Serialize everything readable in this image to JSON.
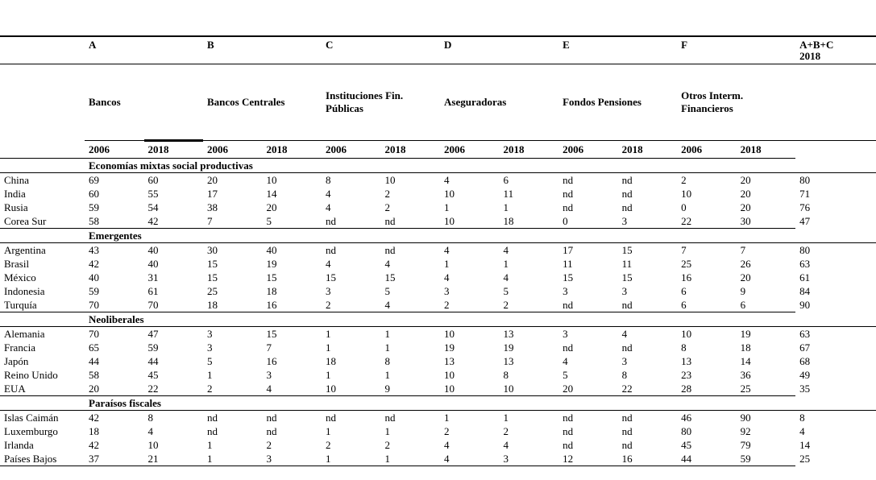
{
  "colors": {
    "text": "#000000",
    "background": "#ffffff",
    "rule": "#000000"
  },
  "table": {
    "letter_headers": [
      "A",
      "B",
      "C",
      "D",
      "E",
      "F"
    ],
    "sum_header_line1": "A+B+C",
    "sum_header_line2": "2018",
    "group_names": [
      "Bancos",
      "Bancos Centrales",
      "Instituciones Fin. Públicas",
      "Aseguradoras",
      "Fondos Pensiones",
      "Otros Interm. Financieros"
    ],
    "year_pair": [
      "2006",
      "2018"
    ],
    "nd_label": "nd",
    "sections": [
      {
        "title": "Economías mixtas social productivas",
        "rows": [
          {
            "country": "China",
            "values": [
              69,
              60,
              20,
              10,
              8,
              10,
              4,
              6,
              "nd",
              "nd",
              2,
              20
            ],
            "total": 80
          },
          {
            "country": "India",
            "values": [
              60,
              55,
              17,
              14,
              4,
              2,
              10,
              11,
              "nd",
              "nd",
              10,
              20
            ],
            "total": 71
          },
          {
            "country": "Rusia",
            "values": [
              59,
              54,
              38,
              20,
              4,
              2,
              1,
              1,
              "nd",
              "nd",
              0,
              20
            ],
            "total": 76
          },
          {
            "country": "Corea Sur",
            "values": [
              58,
              42,
              7,
              5,
              "nd",
              "nd",
              10,
              18,
              0,
              3,
              22,
              30
            ],
            "total": 47
          }
        ]
      },
      {
        "title": "Emergentes",
        "rows": [
          {
            "country": "Argentina",
            "values": [
              43,
              40,
              30,
              40,
              "nd",
              "nd",
              4,
              4,
              17,
              15,
              7,
              7
            ],
            "total": 80
          },
          {
            "country": "Brasil",
            "values": [
              42,
              40,
              15,
              19,
              4,
              4,
              1,
              1,
              11,
              11,
              25,
              26
            ],
            "total": 63
          },
          {
            "country": "México",
            "values": [
              40,
              31,
              15,
              15,
              15,
              15,
              4,
              4,
              15,
              15,
              16,
              20
            ],
            "total": 61
          },
          {
            "country": "Indonesia",
            "values": [
              59,
              61,
              25,
              18,
              3,
              5,
              3,
              5,
              3,
              3,
              6,
              9
            ],
            "total": 84
          },
          {
            "country": "Turquía",
            "values": [
              70,
              70,
              18,
              16,
              2,
              4,
              2,
              2,
              "nd",
              "nd",
              6,
              6
            ],
            "total": 90
          }
        ]
      },
      {
        "title": "Neoliberales",
        "rows": [
          {
            "country": "Alemania",
            "values": [
              70,
              47,
              3,
              15,
              1,
              1,
              10,
              13,
              3,
              4,
              10,
              19
            ],
            "total": 63
          },
          {
            "country": "Francia",
            "values": [
              65,
              59,
              3,
              7,
              1,
              1,
              19,
              19,
              "nd",
              "nd",
              8,
              18
            ],
            "total": 67
          },
          {
            "country": "Japón",
            "values": [
              44,
              44,
              5,
              16,
              18,
              8,
              13,
              13,
              4,
              3,
              13,
              14
            ],
            "total": 68
          },
          {
            "country": "Reino Unido",
            "values": [
              58,
              45,
              1,
              3,
              1,
              1,
              10,
              8,
              5,
              8,
              23,
              36
            ],
            "total": 49
          },
          {
            "country": "EUA",
            "values": [
              20,
              22,
              2,
              4,
              10,
              9,
              10,
              10,
              20,
              22,
              28,
              25
            ],
            "total": 35
          }
        ]
      },
      {
        "title": "Paraísos fiscales",
        "rows": [
          {
            "country": "Islas Caimán",
            "values": [
              42,
              8,
              "nd",
              "nd",
              "nd",
              "nd",
              1,
              1,
              "nd",
              "nd",
              46,
              90
            ],
            "total": 8
          },
          {
            "country": "Luxemburgo",
            "values": [
              18,
              4,
              "nd",
              "nd",
              1,
              1,
              2,
              2,
              "nd",
              "nd",
              80,
              92
            ],
            "total": 4
          },
          {
            "country": "Irlanda",
            "values": [
              42,
              10,
              1,
              2,
              2,
              2,
              4,
              4,
              "nd",
              "nd",
              45,
              79
            ],
            "total": 14
          },
          {
            "country": "Países Bajos",
            "values": [
              37,
              21,
              1,
              3,
              1,
              1,
              4,
              3,
              12,
              16,
              44,
              59
            ],
            "total": 25
          }
        ]
      }
    ]
  }
}
